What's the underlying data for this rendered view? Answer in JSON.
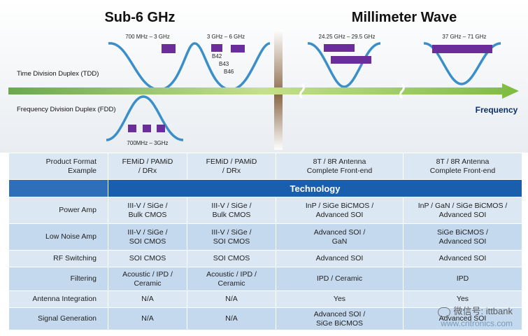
{
  "sub6_title": "Sub-6 GHz",
  "mmwave_title": "Millimeter Wave",
  "range_700_3": "700 MHz – 3 GHz",
  "range_3_6": "3 GHz – 6 GHz",
  "band_b42": "B42",
  "band_b43": "B43",
  "band_b46": "B46",
  "range_fdd": "700MHz – 3GHz",
  "range_24_29": "24.25 GHz – 29.5 GHz",
  "range_37_71": "37 GHz – 71 GHz",
  "tdd_label": "Time Division Duplex (TDD)",
  "fdd_label": "Frequency Division Duplex (FDD)",
  "axis_label": "Frequency",
  "colors": {
    "band": "#6b2d9a",
    "curve": "#3a8fc9",
    "arrow": "#8bc34a",
    "divider": "#8b6a4a",
    "header_band": "#1a5fae"
  },
  "table": {
    "rows": [
      {
        "label": "Product Format\nExample",
        "cells": [
          "FEMiD / PAMiD\n/ DRx",
          "FEMiD / PAMiD\n/ DRx",
          "8T / 8R Antenna\nComplete Front-end",
          "8T / 8R Antenna\nComplete Front-end"
        ]
      },
      {
        "band": "Technology"
      },
      {
        "label": "Power Amp",
        "cells": [
          "III-V / SiGe /\nBulk CMOS",
          "III-V / SiGe /\nBulk CMOS",
          "InP / SiGe BiCMOS /\nAdvanced SOI",
          "InP / GaN / SiGe BiCMOS /\nAdvanced SOI"
        ]
      },
      {
        "label": "Low Noise Amp",
        "cells": [
          "III-V / SiGe /\nSOI CMOS",
          "III-V / SiGe /\nSOI CMOS",
          "Advanced SOI /\nGaN",
          "SiGe BiCMOS /\nAdvanced SOI"
        ]
      },
      {
        "label": "RF Switching",
        "cells": [
          "SOI CMOS",
          "SOI CMOS",
          "Advanced SOI",
          "Advanced SOI"
        ]
      },
      {
        "label": "Filtering",
        "cells": [
          "Acoustic / IPD /\nCeramic",
          "Acoustic / IPD /\nCeramic",
          "IPD / Ceramic",
          "IPD"
        ]
      },
      {
        "label": "Antenna Integration",
        "cells": [
          "N/A",
          "N/A",
          "Yes",
          "Yes"
        ]
      },
      {
        "label": "Signal  Generation",
        "cells": [
          "N/A",
          "N/A",
          "Advanced SOI /\nSiGe BiCMOS",
          "Advanced SOI"
        ]
      }
    ]
  },
  "watermark": {
    "line1": "微信号: ittbank",
    "line2": "www.cntronics.com"
  }
}
